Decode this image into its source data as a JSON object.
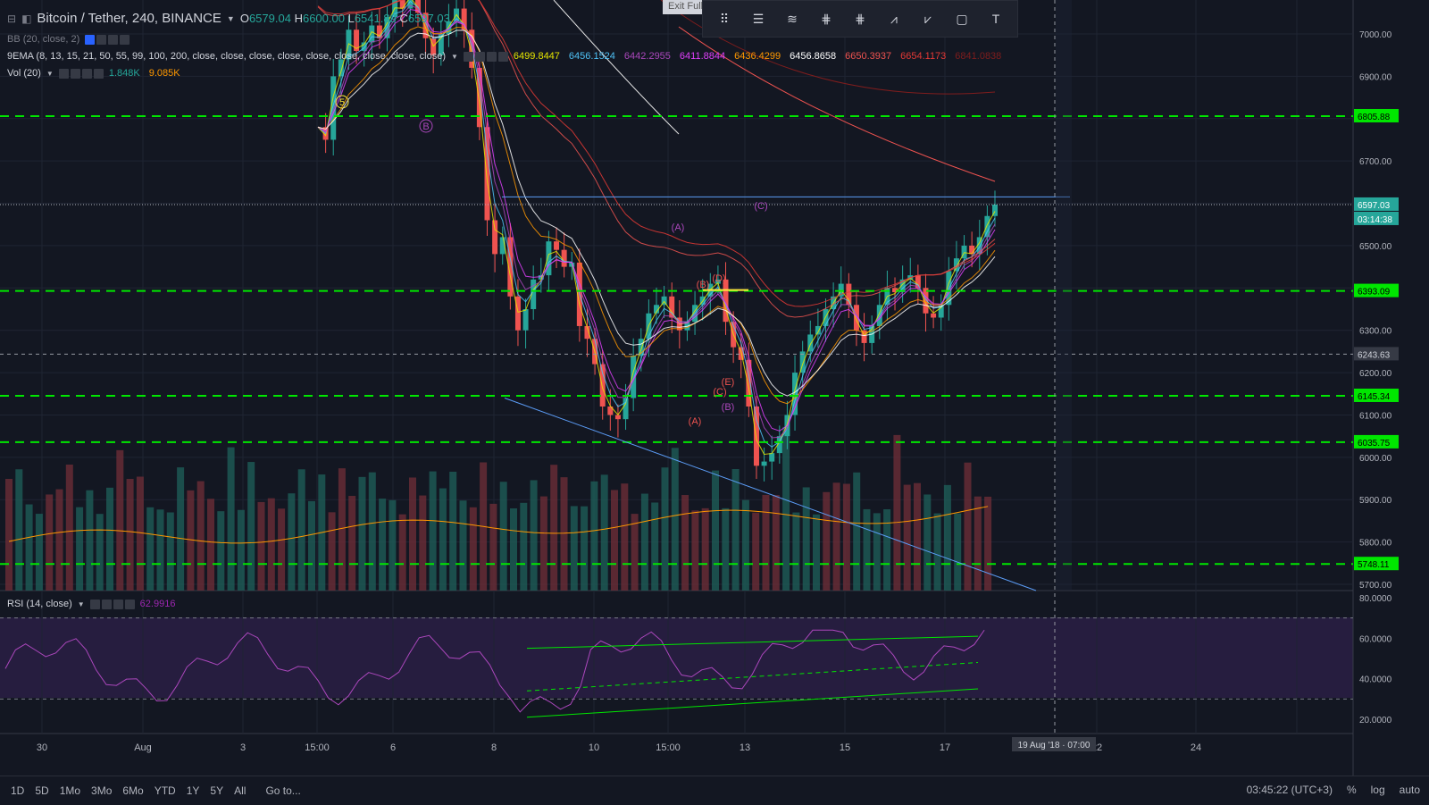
{
  "header": {
    "title": "Bitcoin / Tether, 240, BINANCE",
    "ohlc": {
      "o_label": "O",
      "o": "6579.04",
      "h_label": "H",
      "h": "6600.00",
      "l_label": "L",
      "l": "6541.89",
      "c_label": "C",
      "c": "6597.03"
    }
  },
  "indicators": {
    "bb": "BB (20, close, 2)",
    "ema": "9EMA (8, 13, 15, 21, 50, 55, 99, 100, 200, close, close, close, close, close, close, close, close, close)",
    "ema_values": [
      {
        "value": "6499.8447",
        "color": "#e6e600"
      },
      {
        "value": "6456.1524",
        "color": "#4fc3f7"
      },
      {
        "value": "6442.2955",
        "color": "#ab47bc"
      },
      {
        "value": "6411.8844",
        "color": "#e040fb"
      },
      {
        "value": "6436.4299",
        "color": "#ff9800"
      },
      {
        "value": "6456.8658",
        "color": "#ffffff"
      },
      {
        "value": "6650.3937",
        "color": "#ef5350"
      },
      {
        "value": "6654.1173",
        "color": "#e53935"
      },
      {
        "value": "6841.0838",
        "color": "#7f1d1d"
      }
    ],
    "vol": "Vol (20)",
    "vol_values": [
      {
        "value": "1.848K",
        "color": "#26a69a"
      },
      {
        "value": "9.085K",
        "color": "#ff9800"
      }
    ],
    "rsi": "RSI (14, close)",
    "rsi_value": "62.9916"
  },
  "toolbar": {
    "exit_label": "Exit Full",
    "tools": [
      "horizontal-lines-tool",
      "pitchfork-tool",
      "fib-retracement-tool",
      "fib-extension-tool",
      "elliott-wave-tool",
      "abcd-pattern-tool",
      "rectangle-tool",
      "text-tool"
    ]
  },
  "price_axis": {
    "ticks": [
      "7000.00",
      "6900.00",
      "6800.00",
      "6700.00",
      "6600.00",
      "6500.00",
      "6400.00",
      "6300.00",
      "6200.00",
      "6100.00",
      "6000.00",
      "5900.00",
      "5800.00",
      "5700.00"
    ],
    "labels": [
      {
        "text": "6805.88",
        "type": "green"
      },
      {
        "text": "6597.03",
        "type": "price"
      },
      {
        "text": "03:14:38",
        "type": "timer"
      },
      {
        "text": "6393.09",
        "type": "green"
      },
      {
        "text": "6243.63",
        "type": "cross"
      },
      {
        "text": "6145.34",
        "type": "green"
      },
      {
        "text": "6035.75",
        "type": "green"
      },
      {
        "text": "5748.11",
        "type": "green"
      }
    ]
  },
  "rsi_axis": {
    "ticks": [
      "80.0000",
      "60.0000",
      "40.0000",
      "20.0000"
    ]
  },
  "time_axis": {
    "ticks": [
      "30",
      "Aug",
      "3",
      "15:00",
      "6",
      "8",
      "10",
      "15:00",
      "13",
      "15",
      "17",
      "22",
      "24"
    ],
    "crosshair": "19 Aug '18 · 07:00"
  },
  "elliott_labels": [
    "5",
    "B",
    "(A)",
    "(B)",
    "(D)",
    "(C)",
    "(E)",
    "(C)",
    "(A)",
    "(B)"
  ],
  "bottom": {
    "ranges": [
      "1D",
      "5D",
      "1Mo",
      "3Mo",
      "6Mo",
      "YTD",
      "1Y",
      "5Y",
      "All"
    ],
    "goto": "Go to...",
    "time": "03:45:22 (UTC+3)",
    "percent": "%",
    "log": "log",
    "auto": "auto"
  },
  "colors": {
    "up": "#26a69a",
    "down": "#ef5350",
    "support": "#00e600",
    "background": "#131722"
  }
}
